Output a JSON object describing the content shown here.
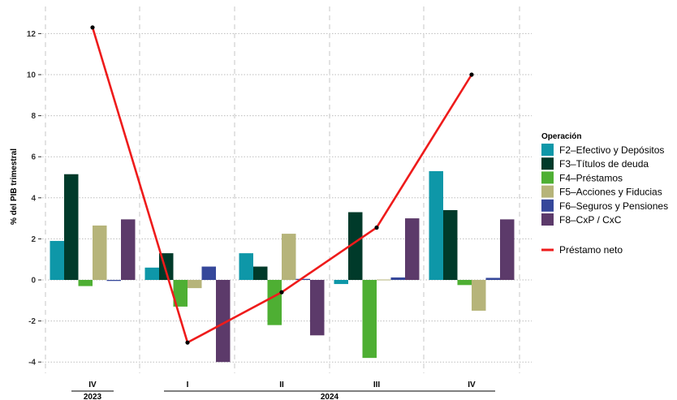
{
  "chart_data": {
    "type": "bar",
    "title": "",
    "ylabel": "% del PIB trimestral",
    "xlabel": "",
    "ylim": [
      -4.4,
      12.8
    ],
    "yticks": [
      -4,
      -2,
      0,
      2,
      4,
      6,
      8,
      10,
      12
    ],
    "grid": true,
    "legend_position": "right",
    "categories": [
      "IV",
      "I",
      "II",
      "III",
      "IV"
    ],
    "year_groups": [
      {
        "label": "2023",
        "categories": [
          0
        ]
      },
      {
        "label": "2024",
        "categories": [
          1,
          2,
          3,
          4
        ]
      }
    ],
    "legend_title": "Operación",
    "series": [
      {
        "name": "F2–Efectivo y Depósitos",
        "color": "#0e97a8",
        "values": [
          1.9,
          0.6,
          1.3,
          -0.2,
          5.3
        ]
      },
      {
        "name": "F3–Títulos de deuda",
        "color": "#003a2a",
        "values": [
          5.15,
          1.3,
          0.65,
          3.3,
          3.4
        ]
      },
      {
        "name": "F4–Préstamos",
        "color": "#4eaf33",
        "values": [
          -0.3,
          -1.3,
          -2.2,
          -3.8,
          -0.25
        ]
      },
      {
        "name": "F5–Acciones y Fiducias",
        "color": "#b6b47a",
        "values": [
          2.65,
          -0.4,
          2.25,
          0.02,
          -1.5
        ]
      },
      {
        "name": "F6–Seguros y Pensiones",
        "color": "#35479a",
        "values": [
          -0.05,
          0.65,
          0.05,
          0.12,
          0.1
        ]
      },
      {
        "name": "F8–CxP / CxC",
        "color": "#5c3a6a",
        "values": [
          2.95,
          -4.0,
          -2.7,
          3.0,
          2.95
        ]
      }
    ],
    "line": {
      "name": "Préstamo neto",
      "color": "#ee1b1b",
      "values": [
        12.3,
        -3.05,
        -0.6,
        2.55,
        10.0
      ]
    }
  }
}
